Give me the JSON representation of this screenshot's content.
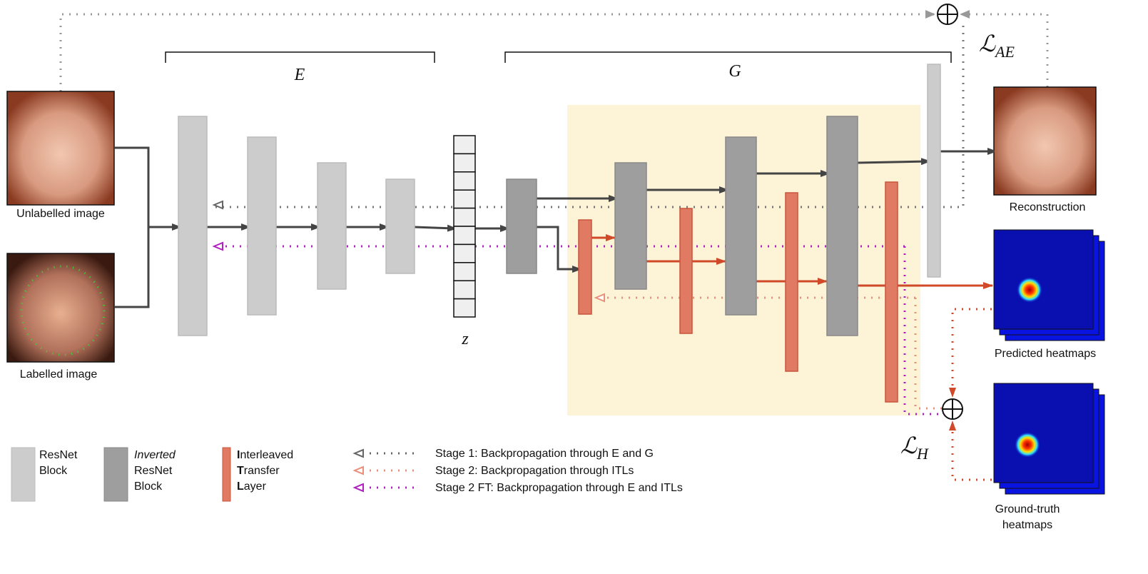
{
  "encoder_label": "E",
  "generator_label": "G",
  "latent_label": "z",
  "loss_ae": "ℒ",
  "loss_ae_sub": "AE",
  "loss_h": "ℒ",
  "loss_h_sub": "H",
  "images": {
    "unlabelled": "Unlabelled image",
    "labelled": "Labelled image",
    "reconstruction": "Reconstruction",
    "predicted": "Predicted heatmaps",
    "ground_truth_1": "Ground-truth",
    "ground_truth_2": "heatmaps"
  },
  "legend": {
    "resnet_1": "ResNet",
    "resnet_2": "Block",
    "inverted_1": "Inverted",
    "inverted_2": "ResNet",
    "inverted_3": "Block",
    "itl_1_b": "I",
    "itl_1": "nterleaved",
    "itl_2_b": "T",
    "itl_2": "ransfer",
    "itl_3_b": "L",
    "itl_3": "ayer",
    "stage1": "Stage 1: Backpropagation through E and G",
    "stage2": "Stage 2: Backpropagation through ITLs",
    "stage2ft": "Stage 2 FT: Backpropagation through E and ITLs"
  },
  "colors": {
    "resnet": "#cccccc",
    "inverted": "#9e9e9e",
    "itl": "#e07a63",
    "highlight": "#fdf3d6",
    "stage1": "#666666",
    "stage2": "#e8907c",
    "stage2ft": "#b020c0"
  }
}
